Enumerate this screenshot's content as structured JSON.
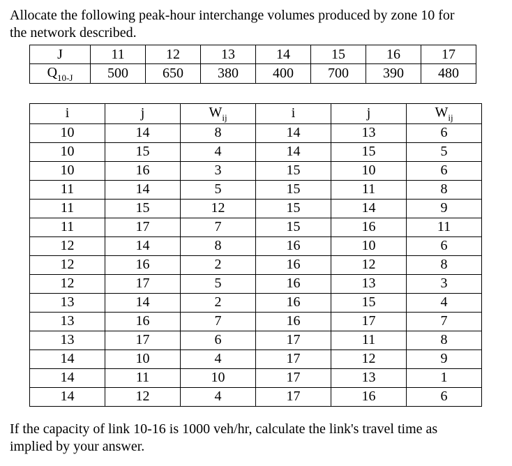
{
  "intro": {
    "line1": "Allocate the following peak-hour interchange volumes produced by zone 10 for",
    "line2": "the network described."
  },
  "volumes_table": {
    "row_labels": {
      "j": "J",
      "q_prefix": "Q",
      "q_sub": "10-J"
    },
    "j_values": [
      "11",
      "12",
      "13",
      "14",
      "15",
      "16",
      "17"
    ],
    "q_values": [
      "500",
      "650",
      "380",
      "400",
      "700",
      "390",
      "480"
    ]
  },
  "weights_table": {
    "headers": {
      "i": "i",
      "j": "j",
      "w_prefix": "W",
      "w_sub": "ij"
    },
    "left_rows": [
      [
        "10",
        "14",
        "8"
      ],
      [
        "10",
        "15",
        "4"
      ],
      [
        "10",
        "16",
        "3"
      ],
      [
        "11",
        "14",
        "5"
      ],
      [
        "11",
        "15",
        "12"
      ],
      [
        "11",
        "17",
        "7"
      ],
      [
        "12",
        "14",
        "8"
      ],
      [
        "12",
        "16",
        "2"
      ],
      [
        "12",
        "17",
        "5"
      ],
      [
        "13",
        "14",
        "2"
      ],
      [
        "13",
        "16",
        "7"
      ],
      [
        "13",
        "17",
        "6"
      ],
      [
        "14",
        "10",
        "4"
      ],
      [
        "14",
        "11",
        "10"
      ],
      [
        "14",
        "12",
        "4"
      ]
    ],
    "right_rows": [
      [
        "14",
        "13",
        "6"
      ],
      [
        "14",
        "15",
        "5"
      ],
      [
        "15",
        "10",
        "6"
      ],
      [
        "15",
        "11",
        "8"
      ],
      [
        "15",
        "14",
        "9"
      ],
      [
        "15",
        "16",
        "11"
      ],
      [
        "16",
        "10",
        "6"
      ],
      [
        "16",
        "12",
        "8"
      ],
      [
        "16",
        "13",
        "3"
      ],
      [
        "16",
        "15",
        "4"
      ],
      [
        "16",
        "17",
        "7"
      ],
      [
        "17",
        "11",
        "8"
      ],
      [
        "17",
        "12",
        "9"
      ],
      [
        "17",
        "13",
        "1"
      ],
      [
        "17",
        "16",
        "6"
      ]
    ]
  },
  "outro": {
    "line1": "If the capacity of link 10-16 is 1000 veh/hr, calculate the link's travel time as",
    "line2": "implied by your answer."
  }
}
